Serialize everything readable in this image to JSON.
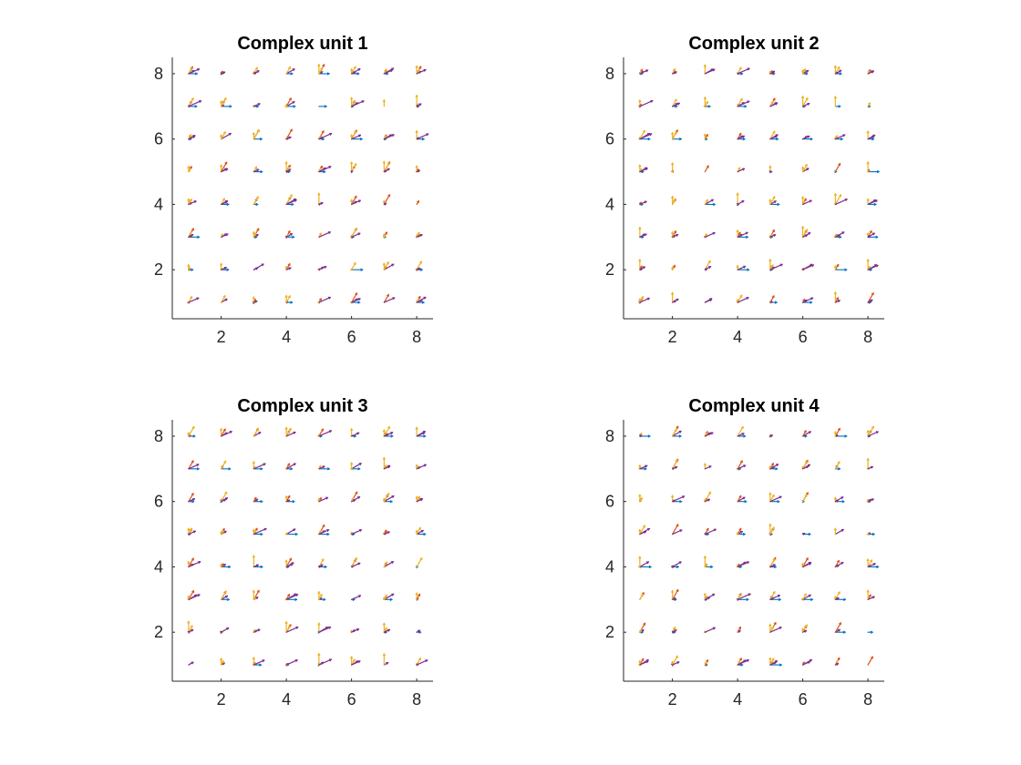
{
  "figure": {
    "colors": {
      "axis": "#262626",
      "background": "#ffffff"
    },
    "angle_colors": [
      "#0072BD",
      "#7E2F8E",
      "#D95319",
      "#EDB120",
      "#EDB120",
      "#7E2F8E"
    ],
    "angle_degrees": [
      0,
      30,
      60,
      90,
      120,
      150
    ]
  },
  "chart_data": [
    {
      "type": "quiver",
      "title": "Complex unit 1",
      "xlim": [
        0.5,
        8.5
      ],
      "ylim": [
        0.5,
        8.5
      ],
      "xticks": [
        2,
        4,
        6,
        8
      ],
      "yticks": [
        2,
        4,
        6,
        8
      ],
      "xticklabels": [
        "2",
        "4",
        "6",
        "8"
      ],
      "yticklabels": [
        "2",
        "4",
        "6",
        "8"
      ],
      "grid": false,
      "grid_x": [
        1,
        2,
        3,
        4,
        5,
        6,
        7,
        8
      ],
      "grid_y": [
        1,
        2,
        3,
        4,
        5,
        6,
        7,
        8
      ],
      "seed": 11
    },
    {
      "type": "quiver",
      "title": "Complex unit 2",
      "xlim": [
        0.5,
        8.5
      ],
      "ylim": [
        0.5,
        8.5
      ],
      "xticks": [
        2,
        4,
        6,
        8
      ],
      "yticks": [
        2,
        4,
        6,
        8
      ],
      "xticklabels": [
        "2",
        "4",
        "6",
        "8"
      ],
      "yticklabels": [
        "2",
        "4",
        "6",
        "8"
      ],
      "grid": false,
      "grid_x": [
        1,
        2,
        3,
        4,
        5,
        6,
        7,
        8
      ],
      "grid_y": [
        1,
        2,
        3,
        4,
        5,
        6,
        7,
        8
      ],
      "seed": 23
    },
    {
      "type": "quiver",
      "title": "Complex unit 3",
      "xlim": [
        0.5,
        8.5
      ],
      "ylim": [
        0.5,
        8.5
      ],
      "xticks": [
        2,
        4,
        6,
        8
      ],
      "yticks": [
        2,
        4,
        6,
        8
      ],
      "xticklabels": [
        "2",
        "4",
        "6",
        "8"
      ],
      "yticklabels": [
        "2",
        "4",
        "6",
        "8"
      ],
      "grid": false,
      "grid_x": [
        1,
        2,
        3,
        4,
        5,
        6,
        7,
        8
      ],
      "grid_y": [
        1,
        2,
        3,
        4,
        5,
        6,
        7,
        8
      ],
      "seed": 37
    },
    {
      "type": "quiver",
      "title": "Complex unit 4",
      "xlim": [
        0.5,
        8.5
      ],
      "ylim": [
        0.5,
        8.5
      ],
      "xticks": [
        2,
        4,
        6,
        8
      ],
      "yticks": [
        2,
        4,
        6,
        8
      ],
      "xticklabels": [
        "2",
        "4",
        "6",
        "8"
      ],
      "yticklabels": [
        "2",
        "4",
        "6",
        "8"
      ],
      "grid": false,
      "grid_x": [
        1,
        2,
        3,
        4,
        5,
        6,
        7,
        8
      ],
      "grid_y": [
        1,
        2,
        3,
        4,
        5,
        6,
        7,
        8
      ],
      "seed": 51
    }
  ]
}
